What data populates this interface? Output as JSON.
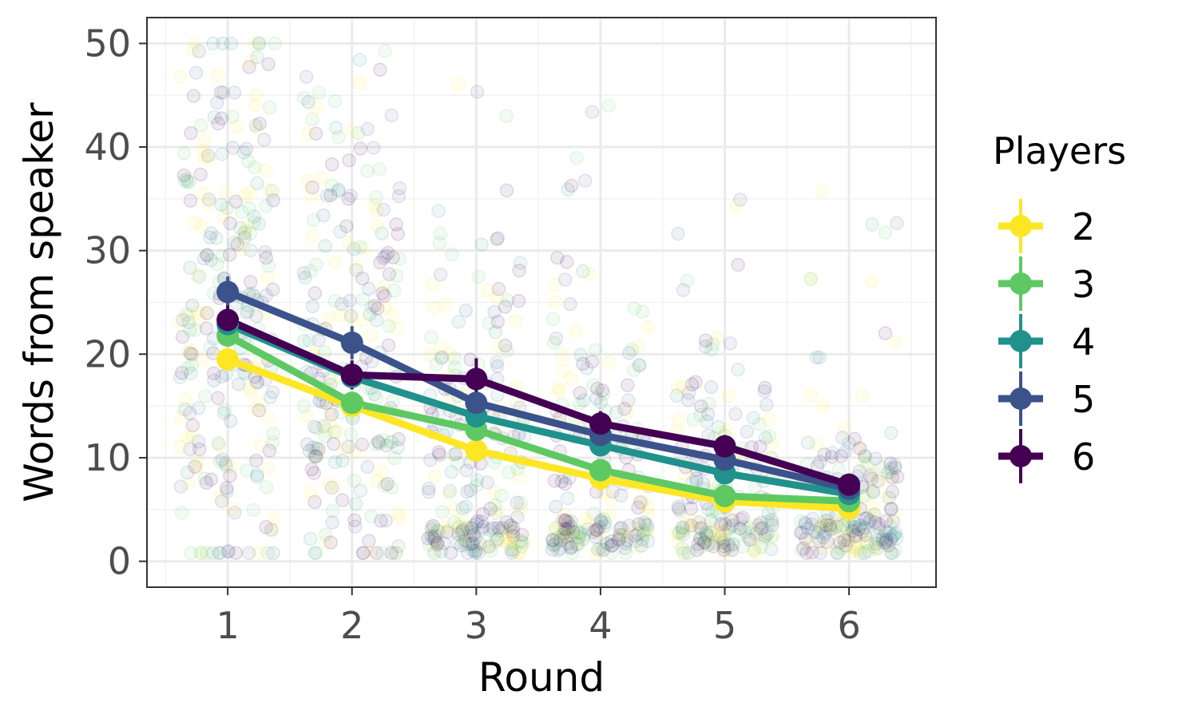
{
  "chart_data": {
    "type": "line",
    "xlabel": "Round",
    "ylabel": "Words from speaker",
    "x": [
      1,
      2,
      3,
      4,
      5,
      6
    ],
    "xlim": [
      0.35,
      6.7
    ],
    "ylim": [
      -2.5,
      52.5
    ],
    "x_ticks": [
      "1",
      "2",
      "3",
      "4",
      "5",
      "6"
    ],
    "y_ticks": [
      "0",
      "10",
      "20",
      "30",
      "40",
      "50"
    ],
    "y_tick_values": [
      0,
      10,
      20,
      30,
      40,
      50
    ],
    "grid": true,
    "legend": {
      "title": "Players",
      "position": "right"
    },
    "raw_points_style": "jittered semi-transparent points per round (individual speaker utterances)",
    "series": [
      {
        "name": "2",
        "color": "#fde725",
        "values": [
          19.5,
          15.0,
          10.7,
          8.0,
          5.8,
          5.1
        ],
        "error": [
          1.0,
          0.8,
          0.6,
          0.5,
          0.4,
          0.4
        ]
      },
      {
        "name": "3",
        "color": "#5ec962",
        "values": [
          21.8,
          15.3,
          12.7,
          8.8,
          6.3,
          5.8
        ],
        "error": [
          1.1,
          0.9,
          0.7,
          0.6,
          0.5,
          0.4
        ]
      },
      {
        "name": "4",
        "color": "#21918c",
        "values": [
          22.9,
          17.8,
          14.0,
          11.2,
          8.5,
          6.5
        ],
        "error": [
          1.2,
          1.0,
          0.8,
          0.7,
          0.6,
          0.5
        ]
      },
      {
        "name": "5",
        "color": "#3b528b",
        "values": [
          26.0,
          21.1,
          15.3,
          12.2,
          9.8,
          7.0
        ],
        "error": [
          1.5,
          1.6,
          1.2,
          0.9,
          0.8,
          0.6
        ]
      },
      {
        "name": "6",
        "color": "#440154",
        "values": [
          23.3,
          18.0,
          17.6,
          13.3,
          11.1,
          7.4
        ],
        "error": [
          1.4,
          1.4,
          2.0,
          1.2,
          1.1,
          0.8
        ]
      }
    ]
  }
}
